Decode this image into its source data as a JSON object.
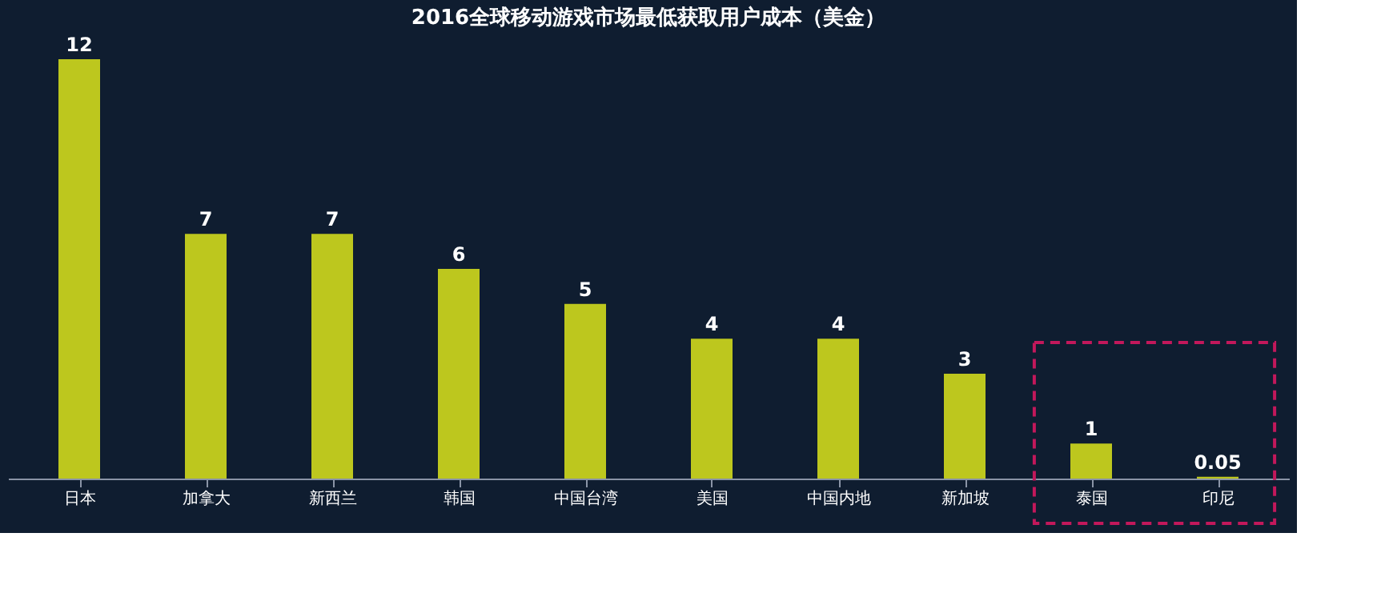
{
  "chart_data": {
    "type": "bar",
    "title": "2016全球移动游戏市场最低获取用户成本（美金）",
    "categories": [
      "日本",
      "加拿大",
      "新西兰",
      "韩国",
      "中国台湾",
      "美国",
      "中国内地",
      "新加坡",
      "泰国",
      "印尼"
    ],
    "values": [
      12,
      7,
      7,
      6,
      5,
      4,
      4,
      3,
      1,
      0.05
    ],
    "color": "#bdc71e",
    "data_labels": true,
    "grid": false
  }
}
